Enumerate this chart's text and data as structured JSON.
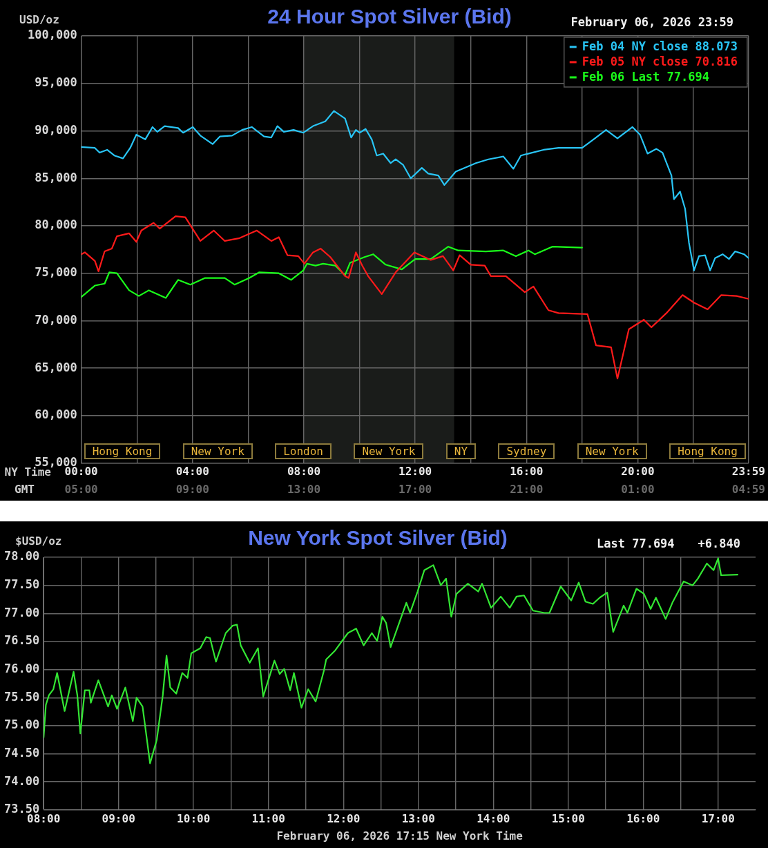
{
  "chart_data": [
    {
      "type": "line",
      "title": "24 Hour Spot Silver (Bid)",
      "ylabel": "USD/oz",
      "xlabel": "NY Time",
      "x2label": "GMT",
      "annotations": [
        "February 06, 2026 23:59",
        "Hong Kong",
        "New York",
        "London",
        "New York",
        "NY",
        "Sydney",
        "New York",
        "Hong Kong"
      ],
      "xlim": [
        0,
        23.983
      ],
      "x2lim": [
        "2026-02-06T05:00",
        "2026-02-07T04:59"
      ],
      "ylim": [
        55000,
        100000
      ],
      "xticks": [
        {
          "value": 0,
          "label": "00:00"
        },
        {
          "value": 2,
          "label": null
        },
        {
          "value": 4,
          "label": "04:00"
        },
        {
          "value": 6,
          "label": null
        },
        {
          "value": 8,
          "label": "08:00"
        },
        {
          "value": 10,
          "label": null
        },
        {
          "value": 12,
          "label": "12:00"
        },
        {
          "value": 14,
          "label": null
        },
        {
          "value": 16,
          "label": "16:00"
        },
        {
          "value": 18,
          "label": null
        },
        {
          "value": 20,
          "label": "20:00"
        },
        {
          "value": 22,
          "label": null
        },
        {
          "value": 23.983,
          "label": "23:59"
        }
      ],
      "x2ticks": [
        {
          "value": "2026-02-06T05:00",
          "label": "05:00"
        },
        {
          "value": "2026-02-06T09:00",
          "label": "09:00"
        },
        {
          "value": "2026-02-06T13:00",
          "label": "13:00"
        },
        {
          "value": "2026-02-06T17:00",
          "label": "17:00"
        },
        {
          "value": "2026-02-06T21:00",
          "label": "21:00"
        },
        {
          "value": "2026-02-07T01:00",
          "label": "01:00"
        },
        {
          "value": "2026-02-07T04:59",
          "label": "04:59"
        }
      ],
      "yticks": [
        {
          "value": 55000,
          "label": "55,000"
        },
        {
          "value": 60000,
          "label": "60,000"
        },
        {
          "value": 65000,
          "label": "65,000"
        },
        {
          "value": 70000,
          "label": "70,000"
        },
        {
          "value": 75000,
          "label": "75,000"
        },
        {
          "value": 80000,
          "label": "80,000"
        },
        {
          "value": 85000,
          "label": "85,000"
        },
        {
          "value": 90000,
          "label": "90,000"
        },
        {
          "value": 95000,
          "label": "95,000"
        },
        {
          "value": 100000,
          "label": "100,000"
        }
      ],
      "grid": true,
      "legend": "top right",
      "marker": "none",
      "line_style": "solid",
      "bands": [
        {
          "axis": "x",
          "from": 8,
          "to": 13.4,
          "color": "#1a1c1a"
        }
      ],
      "series": [
        {
          "name": "Feb 04 NY close 88.073",
          "color": "#29c5f6",
          "x": [
            0,
            0.49,
            0.66,
            0.93,
            1.19,
            1.5,
            1.76,
            1.98,
            2.3,
            2.56,
            2.73,
            3.0,
            3.48,
            3.66,
            4.01,
            4.28,
            4.72,
            4.98,
            5.42,
            5.78,
            6.13,
            6.57,
            6.83,
            7.05,
            7.28,
            7.63,
            7.98,
            8.33,
            8.77,
            9.08,
            9.48,
            9.7,
            9.87,
            10.0,
            10.22,
            10.44,
            10.62,
            10.85,
            11.12,
            11.3,
            11.57,
            11.84,
            12.24,
            12.47,
            12.83,
            13.05,
            13.46,
            14.18,
            14.63,
            15.17,
            15.53,
            15.8,
            16.61,
            17.15,
            18.0,
            18.41,
            18.86,
            19.27,
            19.81,
            20.08,
            20.35,
            20.67,
            20.89,
            21.21,
            21.3,
            21.52,
            21.7,
            21.84,
            22.02,
            22.2,
            22.42,
            22.6,
            22.78,
            23.05,
            23.28,
            23.5,
            23.82,
            23.98
          ],
          "values": [
            88300,
            88200,
            87700,
            88000,
            87400,
            87100,
            88200,
            89600,
            89100,
            90400,
            89900,
            90500,
            90300,
            89800,
            90400,
            89500,
            88600,
            89400,
            89500,
            90100,
            90400,
            89400,
            89300,
            90500,
            89900,
            90100,
            89800,
            90500,
            91000,
            92100,
            91300,
            89300,
            90100,
            89800,
            90200,
            89100,
            87400,
            87600,
            86600,
            87000,
            86400,
            85000,
            86100,
            85500,
            85300,
            84300,
            85700,
            86600,
            87000,
            87300,
            86000,
            87400,
            88000,
            88200,
            88200,
            89100,
            90100,
            89200,
            90400,
            89600,
            87600,
            88100,
            87700,
            85300,
            82800,
            83600,
            81800,
            78200,
            75300,
            76800,
            76900,
            75300,
            76600,
            77000,
            76500,
            77300,
            77000,
            76600
          ]
        },
        {
          "name": "Feb 05 NY close 70.816",
          "color": "#ff1a1a",
          "x": [
            0,
            0.13,
            0.49,
            0.62,
            0.84,
            1.1,
            1.28,
            1.72,
            1.98,
            2.16,
            2.6,
            2.82,
            3.39,
            3.74,
            4.28,
            4.76,
            5.16,
            5.69,
            6.31,
            6.83,
            7.1,
            7.41,
            7.8,
            8.02,
            8.33,
            8.6,
            8.95,
            9.48,
            9.61,
            9.87,
            10.1,
            10.31,
            10.8,
            11.3,
            11.97,
            12.56,
            13.0,
            13.37,
            13.6,
            14.0,
            14.5,
            14.72,
            15.26,
            15.94,
            16.25,
            16.79,
            17.15,
            18.19,
            18.5,
            19.04,
            19.27,
            19.68,
            20.22,
            20.49,
            21.03,
            21.61,
            22.02,
            22.51,
            23.0,
            23.55,
            23.98
          ],
          "values": [
            77000,
            77200,
            76300,
            75200,
            77300,
            77600,
            78900,
            79200,
            78300,
            79500,
            80300,
            79700,
            81000,
            80900,
            78400,
            79500,
            78400,
            78700,
            79500,
            78400,
            78800,
            76900,
            76800,
            76000,
            77200,
            77600,
            76700,
            74700,
            74500,
            77200,
            75800,
            74700,
            72800,
            75100,
            77200,
            76400,
            76800,
            75300,
            76900,
            75900,
            75800,
            74700,
            74700,
            73000,
            73600,
            71100,
            70800,
            70700,
            67400,
            67200,
            63900,
            69100,
            70100,
            69300,
            70800,
            72700,
            71900,
            71200,
            72700,
            72600,
            72300
          ]
        },
        {
          "name": "Feb 06 Last 77.694",
          "color": "#1aff1a",
          "x": [
            0,
            0.49,
            0.84,
            1.01,
            1.28,
            1.72,
            2.07,
            2.43,
            3.04,
            3.48,
            3.92,
            4.45,
            5.16,
            5.51,
            6.04,
            6.4,
            7.1,
            7.54,
            7.98,
            8.11,
            8.42,
            8.69,
            9.13,
            9.48,
            9.66,
            10.18,
            10.49,
            10.94,
            11.52,
            12.0,
            12.56,
            13.19,
            13.55,
            14.54,
            15.17,
            15.62,
            16.07,
            16.3,
            16.93,
            18.0
          ],
          "values": [
            72500,
            73700,
            73900,
            75100,
            75000,
            73200,
            72600,
            73200,
            72400,
            74300,
            73800,
            74500,
            74500,
            73800,
            74500,
            75100,
            75000,
            74300,
            75300,
            76000,
            75800,
            76000,
            75800,
            74800,
            76100,
            76700,
            77000,
            75900,
            75400,
            76500,
            76500,
            77800,
            77400,
            77300,
            77400,
            76800,
            77400,
            77000,
            77800,
            77700
          ]
        }
      ]
    },
    {
      "type": "line",
      "title": "New York Spot Silver (Bid)",
      "ylabel": "$USD/oz",
      "xlabel": "February 06, 2026 17:15 New York Time",
      "annotations": [
        "Last 77.694",
        "+6.840"
      ],
      "xlim": [
        8,
        17.5
      ],
      "ylim": [
        73.5,
        78
      ],
      "xticks": [
        {
          "value": 8,
          "label": "08:00"
        },
        {
          "value": 8.5,
          "label": null
        },
        {
          "value": 9,
          "label": "09:00"
        },
        {
          "value": 9.5,
          "label": null
        },
        {
          "value": 10,
          "label": "10:00"
        },
        {
          "value": 10.5,
          "label": null
        },
        {
          "value": 11,
          "label": "11:00"
        },
        {
          "value": 11.5,
          "label": null
        },
        {
          "value": 12,
          "label": "12:00"
        },
        {
          "value": 12.5,
          "label": null
        },
        {
          "value": 13,
          "label": "13:00"
        },
        {
          "value": 13.5,
          "label": null
        },
        {
          "value": 14,
          "label": "14:00"
        },
        {
          "value": 14.5,
          "label": null
        },
        {
          "value": 15,
          "label": "15:00"
        },
        {
          "value": 15.5,
          "label": null
        },
        {
          "value": 16,
          "label": "16:00"
        },
        {
          "value": 16.5,
          "label": null
        },
        {
          "value": 17,
          "label": "17:00"
        }
      ],
      "yticks": [
        {
          "value": 73.5,
          "label": "73.50"
        },
        {
          "value": 74,
          "label": "74.00"
        },
        {
          "value": 74.5,
          "label": "74.50"
        },
        {
          "value": 75,
          "label": "75.00"
        },
        {
          "value": 75.5,
          "label": "75.50"
        },
        {
          "value": 76,
          "label": "76.00"
        },
        {
          "value": 76.5,
          "label": "76.50"
        },
        {
          "value": 77,
          "label": "77.00"
        },
        {
          "value": 77.5,
          "label": "77.50"
        },
        {
          "value": 78,
          "label": "78.00"
        }
      ],
      "grid": true,
      "marker": "none",
      "line_style": "solid",
      "series": [
        {
          "color": "#33e633",
          "x": [
            8,
            8.03,
            8.07,
            8.13,
            8.18,
            8.28,
            8.4,
            8.45,
            8.49,
            8.55,
            8.61,
            8.63,
            8.73,
            8.86,
            8.91,
            8.98,
            9.09,
            9.19,
            9.24,
            9.32,
            9.42,
            9.51,
            9.59,
            9.64,
            9.69,
            9.77,
            9.85,
            9.92,
            9.97,
            10.09,
            10.17,
            10.22,
            10.3,
            10.43,
            10.52,
            10.58,
            10.63,
            10.75,
            10.86,
            10.93,
            11.08,
            11.15,
            11.21,
            11.29,
            11.34,
            11.44,
            11.53,
            11.63,
            11.74,
            11.77,
            11.89,
            12.06,
            12.17,
            12.27,
            12.38,
            12.45,
            12.52,
            12.57,
            12.63,
            12.84,
            12.89,
            12.99,
            13.08,
            13.2,
            13.3,
            13.37,
            13.44,
            13.51,
            13.66,
            13.8,
            13.85,
            13.97,
            14.1,
            14.22,
            14.31,
            14.41,
            14.53,
            14.68,
            14.75,
            14.9,
            15.04,
            15.14,
            15.23,
            15.33,
            15.42,
            15.52,
            15.6,
            15.74,
            15.79,
            15.91,
            16.01,
            16.1,
            16.17,
            16.3,
            16.39,
            16.54,
            16.66,
            16.73,
            16.85,
            16.94,
            17.0,
            17.04,
            17.26
          ],
          "values": [
            74.79,
            75.37,
            75.54,
            75.65,
            75.94,
            75.26,
            75.96,
            75.54,
            74.86,
            75.63,
            75.63,
            75.41,
            75.81,
            75.34,
            75.54,
            75.3,
            75.68,
            75.08,
            75.5,
            75.34,
            74.33,
            74.75,
            75.54,
            76.25,
            75.68,
            75.57,
            75.94,
            75.85,
            76.29,
            76.38,
            76.58,
            76.56,
            76.14,
            76.65,
            76.78,
            76.8,
            76.43,
            76.12,
            76.38,
            75.52,
            76.16,
            75.92,
            76.01,
            75.63,
            75.94,
            75.32,
            75.65,
            75.43,
            75.98,
            76.18,
            76.34,
            76.65,
            76.73,
            76.43,
            76.65,
            76.51,
            76.94,
            76.83,
            76.4,
            77.19,
            77.01,
            77.39,
            77.77,
            77.86,
            77.5,
            77.62,
            76.94,
            77.35,
            77.53,
            77.39,
            77.53,
            77.1,
            77.3,
            77.1,
            77.3,
            77.32,
            77.05,
            77.01,
            77.01,
            77.48,
            77.23,
            77.55,
            77.21,
            77.17,
            77.28,
            77.37,
            76.67,
            77.14,
            77.01,
            77.44,
            77.35,
            77.08,
            77.28,
            76.9,
            77.19,
            77.57,
            77.5,
            77.62,
            77.89,
            77.77,
            77.98,
            77.68,
            77.69
          ]
        }
      ]
    }
  ]
}
